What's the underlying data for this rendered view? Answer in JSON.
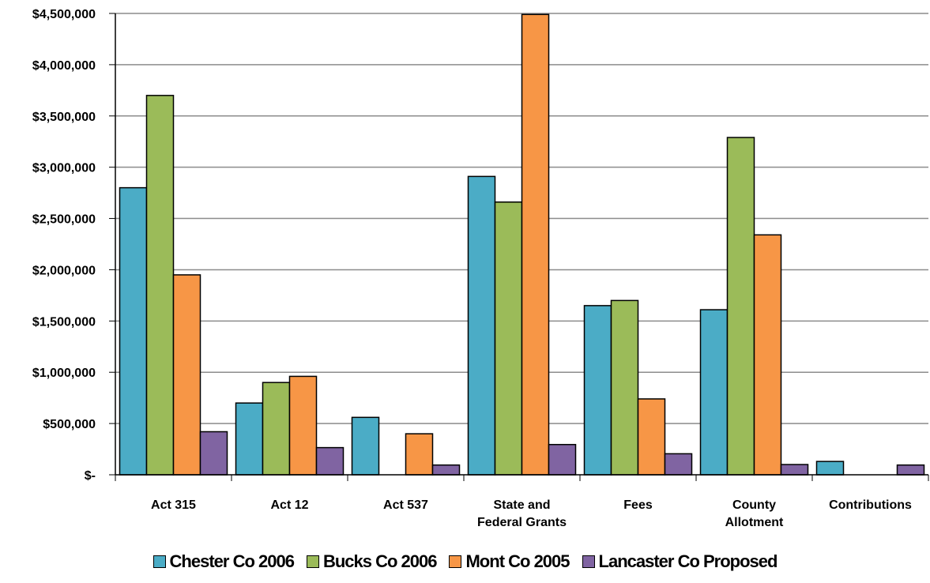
{
  "chart_data": {
    "type": "bar",
    "title": "",
    "xlabel": "",
    "ylabel": "",
    "ylim": [
      0,
      4500000
    ],
    "y_ticks": [
      0,
      500000,
      1000000,
      1500000,
      2000000,
      2500000,
      3000000,
      3500000,
      4000000,
      4500000
    ],
    "y_tick_labels": [
      "$-",
      "$500,000",
      "$1,000,000",
      "$1,500,000",
      "$2,000,000",
      "$2,500,000",
      "$3,000,000",
      "$3,500,000",
      "$4,000,000",
      "$4,500,000"
    ],
    "grid": true,
    "legend_position": "bottom",
    "categories": [
      [
        "Act 315"
      ],
      [
        "Act 12"
      ],
      [
        "Act 537"
      ],
      [
        "State and",
        "Federal Grants"
      ],
      [
        "Fees"
      ],
      [
        "County",
        "Allotment"
      ],
      [
        "Contributions"
      ]
    ],
    "series": [
      {
        "name": "Chester Co 2006",
        "color": "#4BACC6",
        "values": [
          2800000,
          700000,
          560000,
          2910000,
          1650000,
          1610000,
          130000
        ]
      },
      {
        "name": "Bucks Co 2006",
        "color": "#9BBB59",
        "values": [
          3700000,
          900000,
          0,
          2660000,
          1700000,
          3290000,
          0
        ]
      },
      {
        "name": "Mont Co 2005",
        "color": "#F79646",
        "values": [
          1950000,
          960000,
          400000,
          4490000,
          740000,
          2340000,
          0
        ]
      },
      {
        "name": "Lancaster Co Proposed",
        "color": "#8064A2",
        "values": [
          420000,
          265000,
          95000,
          295000,
          205000,
          100000,
          95000
        ]
      }
    ]
  }
}
